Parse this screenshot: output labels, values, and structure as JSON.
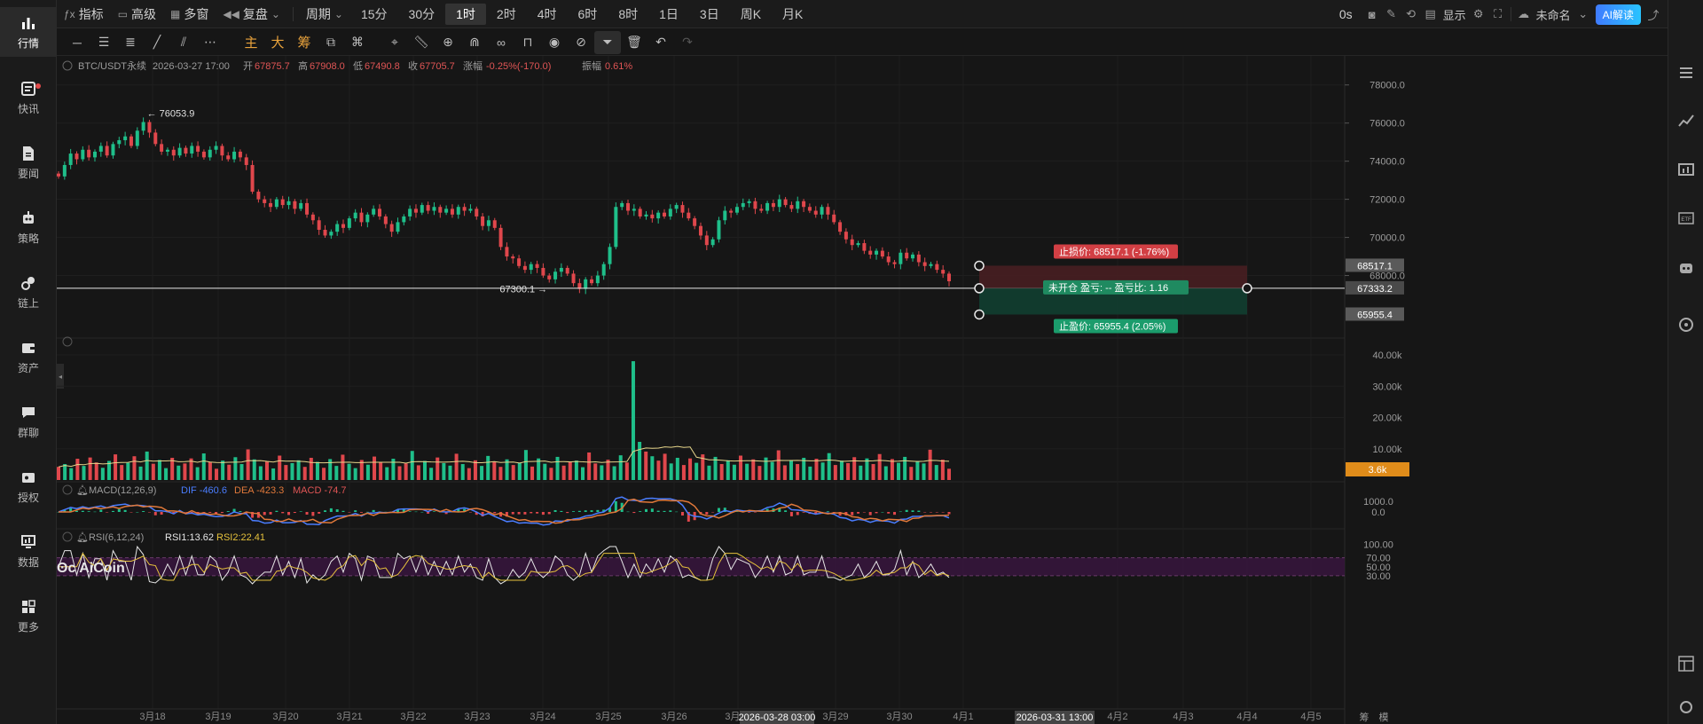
{
  "sidebar": {
    "items": [
      {
        "label": "行情",
        "icon": "bar-chart-icon",
        "active": true
      },
      {
        "label": "快讯",
        "icon": "news-flash-icon",
        "dot": true
      },
      {
        "label": "要闻",
        "icon": "document-icon"
      },
      {
        "label": "策略",
        "icon": "robot-icon"
      },
      {
        "label": "链上",
        "icon": "chain-icon"
      },
      {
        "label": "资产",
        "icon": "wallet-icon"
      },
      {
        "label": "群聊",
        "icon": "chat-icon"
      },
      {
        "label": "授权",
        "icon": "key-icon"
      },
      {
        "label": "数据",
        "icon": "monitor-icon"
      },
      {
        "label": "更多",
        "icon": "grid-icon"
      }
    ]
  },
  "toolbar": {
    "indicator": "指标",
    "advanced": "高级",
    "multi_window": "多窗",
    "replay": "复盘",
    "period": "周期",
    "intervals": [
      "15分",
      "30分",
      "1时",
      "2时",
      "4时",
      "6时",
      "8时",
      "1日",
      "3日",
      "周K",
      "月K"
    ],
    "active_interval": "1时",
    "countdown": "0s",
    "display": "显示",
    "layout_name": "未命名",
    "ai_button": "AI解读"
  },
  "drawing_tools": {
    "main": "主",
    "big": "大",
    "chips": "筹"
  },
  "ohlc": {
    "symbol": "BTC/USDT永续",
    "time": "2026-03-27 17:00",
    "open_label": "开",
    "open": "67875.7",
    "high_label": "高",
    "high": "67908.0",
    "low_label": "低",
    "low": "67490.8",
    "close_label": "收",
    "close": "67705.7",
    "change_label": "涨幅",
    "change": "-0.25%(-170.0)",
    "amp_label": "振幅",
    "amp": "0.61%"
  },
  "chart_data": {
    "type": "candlestick",
    "price_axis": [
      "78000.0",
      "76000.0",
      "74000.0",
      "72000.0",
      "70000.0",
      "68000.0"
    ],
    "price_range": [
      65000,
      78500
    ],
    "high_marker": "← 76053.9",
    "low_marker": "67300.1 →",
    "current_price": "67333.2",
    "stop_loss_axis": "68517.1",
    "take_profit_axis": "65955.4",
    "stop_loss_label": "止损价: 68517.1 (-1.76%)",
    "take_profit_label": "止盈价: 65955.4 (2.05%)",
    "position_label": "未开仓  盈亏: --  盈亏比: 1.16",
    "volume_axis": [
      "40.00k",
      "30.00k",
      "20.00k",
      "10.00k"
    ],
    "volume_current": "3.6k",
    "macd_axis": [
      "1000.0",
      "0.0"
    ],
    "rsi_axis": [
      "100.00",
      "70.00",
      "50.00",
      "30.00"
    ],
    "x_labels": [
      "3月18",
      "3月19",
      "3月20",
      "3月21",
      "3月22",
      "3月23",
      "3月24",
      "3月25",
      "3月26",
      "3月27",
      "3月29",
      "3月30",
      "4月1",
      "4月2",
      "4月3",
      "4月4",
      "4月5"
    ],
    "x_highlight_1": "2026-03-28 03:00",
    "x_highlight_2": "2026-03-31 13:00",
    "axis_end_labels": [
      "筹",
      "模"
    ],
    "price_path": [
      73200,
      73800,
      74400,
      74100,
      74600,
      74200,
      74500,
      74800,
      74300,
      74900,
      75100,
      75300,
      74800,
      75600,
      76054,
      75500,
      74900,
      74500,
      74600,
      74300,
      74700,
      74400,
      74800,
      74500,
      74200,
      74600,
      74800,
      74300,
      74100,
      74500,
      74200,
      73800,
      72400,
      72000,
      71800,
      71600,
      72000,
      71700,
      71900,
      71500,
      71800,
      71200,
      70900,
      70400,
      70100,
      70300,
      70700,
      70500,
      71000,
      71300,
      70800,
      71200,
      71500,
      71100,
      70700,
      70300,
      70800,
      71100,
      71500,
      71300,
      71700,
      71400,
      71600,
      71300,
      71500,
      71200,
      71600,
      71400,
      71500,
      71100,
      70600,
      70900,
      70500,
      69500,
      69000,
      68900,
      68500,
      68300,
      68600,
      68400,
      68000,
      67800,
      68200,
      68400,
      68100,
      67600,
      67300,
      67800,
      67600,
      68000,
      68600,
      69500,
      71600,
      71800,
      71400,
      71500,
      71100,
      71200,
      71000,
      71300,
      71100,
      71500,
      71700,
      71300,
      71000,
      70600,
      70100,
      69600,
      69900,
      70900,
      71400,
      71300,
      71600,
      71800,
      71900,
      71500,
      71400,
      71800,
      71600,
      72000,
      71700,
      71500,
      71900,
      71600,
      71400,
      71200,
      71600,
      71200,
      70800,
      70300,
      69900,
      69600,
      69700,
      69300,
      69100,
      69300,
      69000,
      68700,
      68600,
      69200,
      68900,
      69100,
      68700,
      68500,
      68600,
      68300,
      68100,
      67700
    ],
    "volume_path": [
      4200,
      5100,
      3800,
      6800,
      4500,
      7200,
      5600,
      3900,
      6100,
      8200,
      4800,
      5500,
      7600,
      4300,
      9100,
      5200,
      6400,
      3800,
      7100,
      4600,
      5300,
      6900,
      4100,
      8500,
      5700,
      3600,
      6200,
      4900,
      7300,
      5100,
      9800,
      6600,
      4400,
      5900,
      3700,
      7800,
      4800,
      5400,
      6300,
      4200,
      7100,
      5800,
      3900,
      6700,
      4500,
      8100,
      5200,
      3800,
      6400,
      4900,
      7500,
      5600,
      4100,
      6800,
      4400,
      5300,
      9300,
      4700,
      6100,
      3900,
      7200,
      5400,
      4600,
      8400,
      5100,
      3800,
      6300,
      4500,
      7700,
      5900,
      4200,
      6600,
      4800,
      5500,
      9600,
      4300,
      6900,
      5200,
      3900,
      7400,
      4600,
      5800,
      6200,
      4100,
      8800,
      5300,
      4700,
      6500,
      4400,
      7900,
      5600,
      38000,
      12200,
      9100,
      7600,
      6200,
      8400,
      5300,
      7100,
      4800,
      6900,
      5500,
      8200,
      4600,
      7400,
      5100,
      6300,
      4900,
      7800,
      5200,
      6600,
      4500,
      7200,
      5800,
      9500,
      4700,
      6400,
      5100,
      7100,
      4300,
      6800,
      5600,
      8600,
      4800,
      6200,
      5400,
      7300,
      4600,
      6900,
      5100,
      8300,
      4400,
      6700,
      5500,
      7400,
      4200,
      6100,
      5300,
      9700,
      4800,
      6500,
      3600
    ]
  }
}
